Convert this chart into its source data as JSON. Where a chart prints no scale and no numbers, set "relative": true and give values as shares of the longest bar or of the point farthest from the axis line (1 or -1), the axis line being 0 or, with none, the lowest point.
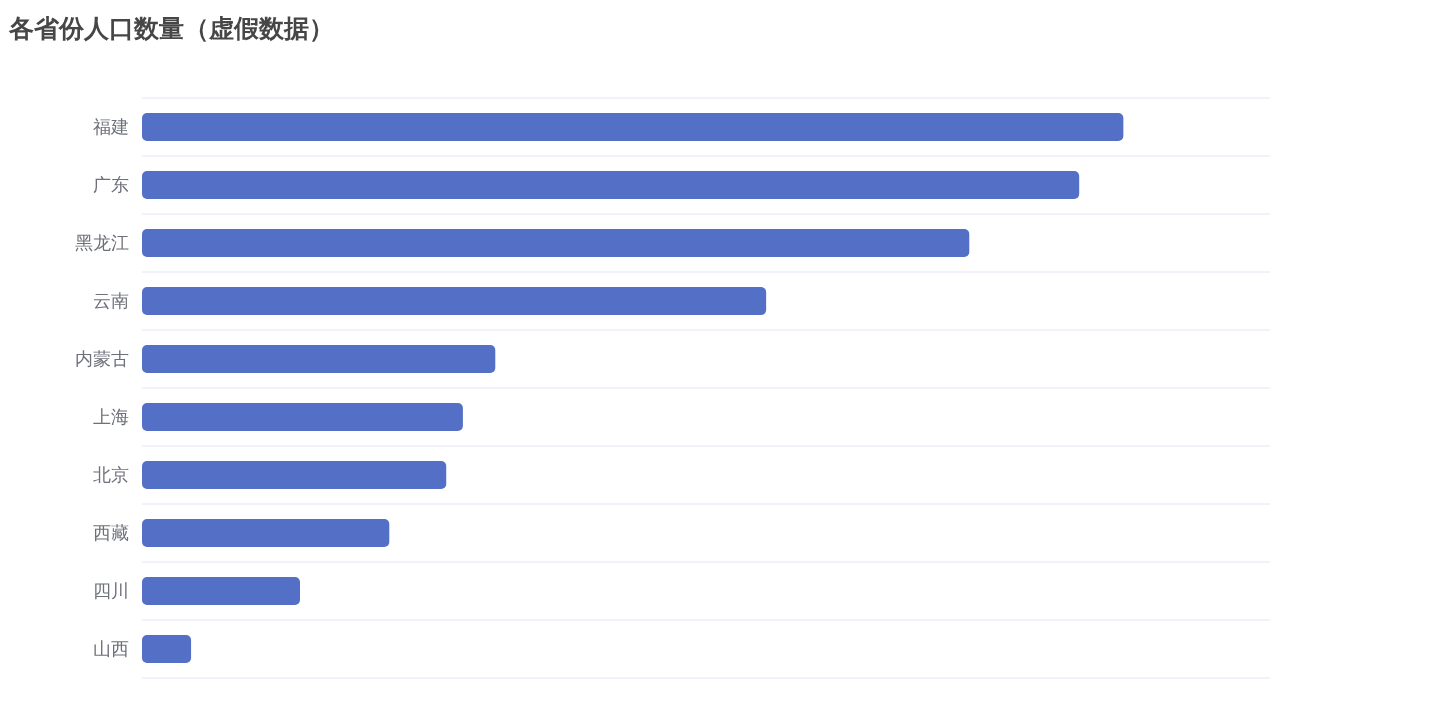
{
  "chart_data": {
    "type": "bar",
    "title": "各省份人口数量（虚假数据）",
    "orientation": "horizontal",
    "relative": true,
    "categories": [
      "福建",
      "广东",
      "黑龙江",
      "云南",
      "内蒙古",
      "上海",
      "北京",
      "西藏",
      "四川",
      "山西"
    ],
    "values": [
      1,
      0.955,
      0.843,
      0.636,
      0.36,
      0.327,
      0.31,
      0.252,
      0.161,
      0.05
    ],
    "color": "#5470c6",
    "grid": "y"
  }
}
